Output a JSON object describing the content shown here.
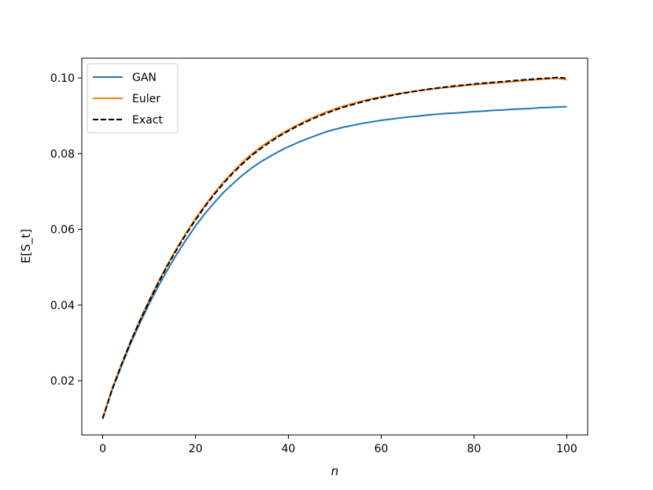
{
  "chart_data": {
    "type": "line",
    "title": "",
    "xlabel": "n",
    "ylabel": "E[S_t]",
    "xlim": [
      -4.5,
      104.5
    ],
    "ylim": [
      0.0057,
      0.1052
    ],
    "x_ticks": [
      0,
      20,
      40,
      60,
      80,
      100
    ],
    "y_ticks": [
      0.02,
      0.04,
      0.06,
      0.08,
      0.1
    ],
    "x_tick_labels": [
      "0",
      "20",
      "40",
      "60",
      "80",
      "100"
    ],
    "y_tick_labels": [
      "0.02",
      "0.04",
      "0.06",
      "0.08",
      "0.10"
    ],
    "grid": false,
    "legend_position": "top-left",
    "x": [
      0,
      2,
      4,
      6,
      8,
      10,
      12,
      14,
      16,
      18,
      20,
      22,
      24,
      26,
      28,
      30,
      32,
      34,
      36,
      38,
      40,
      42,
      44,
      46,
      48,
      50,
      52,
      54,
      56,
      58,
      60,
      62,
      64,
      66,
      68,
      70,
      72,
      74,
      76,
      78,
      80,
      82,
      84,
      86,
      88,
      90,
      92,
      94,
      96,
      98,
      100
    ],
    "series": [
      {
        "name": "GAN",
        "color": "#1f77b4",
        "dash": "solid",
        "values": [
          0.0102,
          0.0175,
          0.0238,
          0.0298,
          0.0352,
          0.0403,
          0.045,
          0.0494,
          0.0535,
          0.0573,
          0.0609,
          0.0641,
          0.067,
          0.0697,
          0.072,
          0.0742,
          0.0761,
          0.0778,
          0.0792,
          0.0806,
          0.0818,
          0.0829,
          0.0839,
          0.0848,
          0.0857,
          0.0864,
          0.087,
          0.0875,
          0.088,
          0.0884,
          0.0888,
          0.0891,
          0.0894,
          0.0897,
          0.0899,
          0.0902,
          0.0904,
          0.0906,
          0.0907,
          0.0909,
          0.0911,
          0.0912,
          0.0914,
          0.0915,
          0.0917,
          0.0918,
          0.0919,
          0.0921,
          0.0922,
          0.0923,
          0.0924
        ]
      },
      {
        "name": "Euler",
        "color": "#ff7f0e",
        "dash": "solid",
        "values": [
          0.0102,
          0.0178,
          0.0243,
          0.0304,
          0.036,
          0.0413,
          0.0462,
          0.0508,
          0.0551,
          0.0591,
          0.0629,
          0.0663,
          0.0695,
          0.0725,
          0.0751,
          0.0776,
          0.0798,
          0.0817,
          0.0834,
          0.0849,
          0.0863,
          0.0876,
          0.0888,
          0.0899,
          0.0909,
          0.0918,
          0.0926,
          0.0933,
          0.0939,
          0.0945,
          0.095,
          0.0955,
          0.0959,
          0.0963,
          0.0966,
          0.0969,
          0.0972,
          0.0975,
          0.0977,
          0.098,
          0.0982,
          0.0984,
          0.0986,
          0.0988,
          0.099,
          0.0992,
          0.0994,
          0.0996,
          0.0998,
          0.0999,
          0.0995
        ]
      },
      {
        "name": "Exact",
        "color": "#000000",
        "dash": "dashed",
        "values": [
          0.01,
          0.0176,
          0.0241,
          0.0302,
          0.0358,
          0.041,
          0.0459,
          0.0505,
          0.0548,
          0.0588,
          0.0625,
          0.066,
          0.0692,
          0.0721,
          0.0748,
          0.0772,
          0.0794,
          0.0813,
          0.083,
          0.0846,
          0.086,
          0.0873,
          0.0885,
          0.0896,
          0.0906,
          0.0915,
          0.0923,
          0.093,
          0.0937,
          0.0943,
          0.0948,
          0.0953,
          0.0958,
          0.0962,
          0.0966,
          0.097,
          0.0973,
          0.0976,
          0.0979,
          0.0981,
          0.0984,
          0.0986,
          0.0988,
          0.099,
          0.0992,
          0.0994,
          0.0996,
          0.0998,
          0.0999,
          0.1001,
          0.0999
        ]
      }
    ]
  }
}
